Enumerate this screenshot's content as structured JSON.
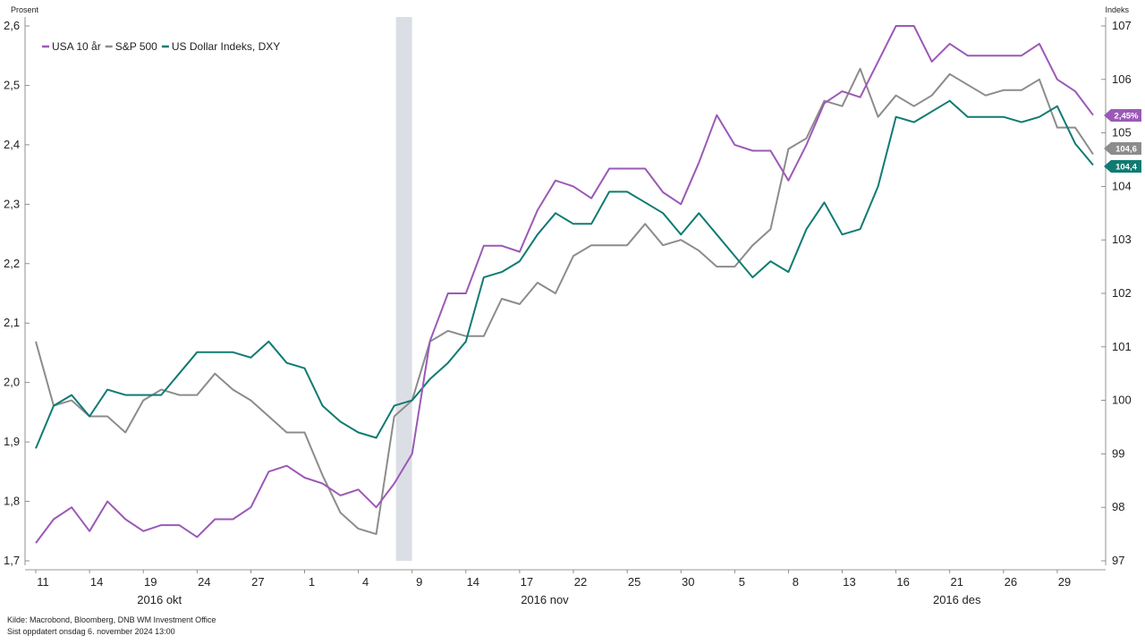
{
  "chart_data": {
    "type": "line",
    "left_axis_title": "Prosent",
    "right_axis_title": "Indeks",
    "left_ylim": [
      1.7,
      2.6
    ],
    "left_ticks": [
      "1,7",
      "1,8",
      "1,9",
      "2,0",
      "2,1",
      "2,2",
      "2,3",
      "2,4",
      "2,5",
      "2,6"
    ],
    "right_ylim": [
      97,
      107
    ],
    "right_ticks": [
      "97",
      "98",
      "99",
      "100",
      "101",
      "102",
      "103",
      "104",
      "105",
      "106",
      "107"
    ],
    "x_ticks": [
      {
        "label": "11",
        "idx": 0
      },
      {
        "label": "14",
        "idx": 3
      },
      {
        "label": "19",
        "idx": 6
      },
      {
        "label": "24",
        "idx": 9
      },
      {
        "label": "27",
        "idx": 12
      },
      {
        "label": "1",
        "idx": 15
      },
      {
        "label": "4",
        "idx": 18
      },
      {
        "label": "9",
        "idx": 21
      },
      {
        "label": "14",
        "idx": 24
      },
      {
        "label": "17",
        "idx": 27
      },
      {
        "label": "22",
        "idx": 30
      },
      {
        "label": "25",
        "idx": 33
      },
      {
        "label": "30",
        "idx": 36
      },
      {
        "label": "5",
        "idx": 39
      },
      {
        "label": "8",
        "idx": 42
      },
      {
        "label": "13",
        "idx": 45
      },
      {
        "label": "16",
        "idx": 48
      },
      {
        "label": "21",
        "idx": 51
      },
      {
        "label": "26",
        "idx": 54
      },
      {
        "label": "29",
        "idx": 57
      }
    ],
    "months": [
      {
        "label": "2016 okt",
        "idx": 6.5
      },
      {
        "label": "2016 nov",
        "idx": 28
      },
      {
        "label": "2016 des",
        "idx": 51
      }
    ],
    "shaded_region": {
      "from_idx": 20.1,
      "to_idx": 21.0,
      "color": "#dcdee6"
    },
    "grid": false,
    "legend_position": "top-left",
    "series": [
      {
        "name": "USA 10 år",
        "axis": "left",
        "color": "#9b59b6",
        "end_label": "2,45%",
        "values": [
          1.73,
          1.77,
          1.79,
          1.75,
          1.8,
          1.77,
          1.75,
          1.76,
          1.76,
          1.74,
          1.77,
          1.77,
          1.79,
          1.85,
          1.86,
          1.84,
          1.83,
          1.81,
          1.82,
          1.79,
          1.83,
          1.88,
          2.07,
          2.15,
          2.15,
          2.23,
          2.23,
          2.22,
          2.29,
          2.34,
          2.33,
          2.31,
          2.36,
          2.36,
          2.36,
          2.32,
          2.3,
          2.37,
          2.45,
          2.4,
          2.39,
          2.39,
          2.34,
          2.4,
          2.47,
          2.49,
          2.48,
          2.54,
          2.6,
          2.6,
          2.54,
          2.57,
          2.55,
          2.55,
          2.55,
          2.55,
          2.57,
          2.51,
          2.49,
          2.45
        ]
      },
      {
        "name": "S&P 500",
        "axis": "right",
        "color": "#8c8c8c",
        "end_label": "104,6",
        "values": [
          101.1,
          99.9,
          100.0,
          99.7,
          99.7,
          99.4,
          100.0,
          100.2,
          100.1,
          100.1,
          100.5,
          100.2,
          100.0,
          99.7,
          99.4,
          99.4,
          98.6,
          97.9,
          97.6,
          97.5,
          99.7,
          100.0,
          101.1,
          101.3,
          101.2,
          101.2,
          101.9,
          101.8,
          102.2,
          102.0,
          102.7,
          102.9,
          102.9,
          102.9,
          103.3,
          102.9,
          103.0,
          102.8,
          102.5,
          102.5,
          102.9,
          103.2,
          104.7,
          104.9,
          105.6,
          105.5,
          106.2,
          105.3,
          105.7,
          105.5,
          105.7,
          106.1,
          105.9,
          105.7,
          105.8,
          105.8,
          106.0,
          105.1,
          105.1,
          104.6
        ]
      },
      {
        "name": "US Dollar Indeks, DXY",
        "axis": "right",
        "color": "#0f7b72",
        "end_label": "104,4",
        "values": [
          99.1,
          99.9,
          100.1,
          99.7,
          100.2,
          100.1,
          100.1,
          100.1,
          100.5,
          100.9,
          100.9,
          100.9,
          100.8,
          101.1,
          100.7,
          100.6,
          99.9,
          99.6,
          99.4,
          99.3,
          99.9,
          100.0,
          100.4,
          100.7,
          101.1,
          102.3,
          102.4,
          102.6,
          103.1,
          103.5,
          103.3,
          103.3,
          103.9,
          103.9,
          103.7,
          103.5,
          103.1,
          103.5,
          103.1,
          102.7,
          102.3,
          102.6,
          102.4,
          103.2,
          103.7,
          103.1,
          103.2,
          104.0,
          105.3,
          105.2,
          105.4,
          105.6,
          105.3,
          105.3,
          105.3,
          105.2,
          105.3,
          105.5,
          104.8,
          104.4
        ]
      }
    ],
    "source": "Kilde: Macrobond, Bloomberg, DNB WM Investment Office",
    "updated": "Sist oppdatert onsdag 6. november 2024 13:00"
  }
}
